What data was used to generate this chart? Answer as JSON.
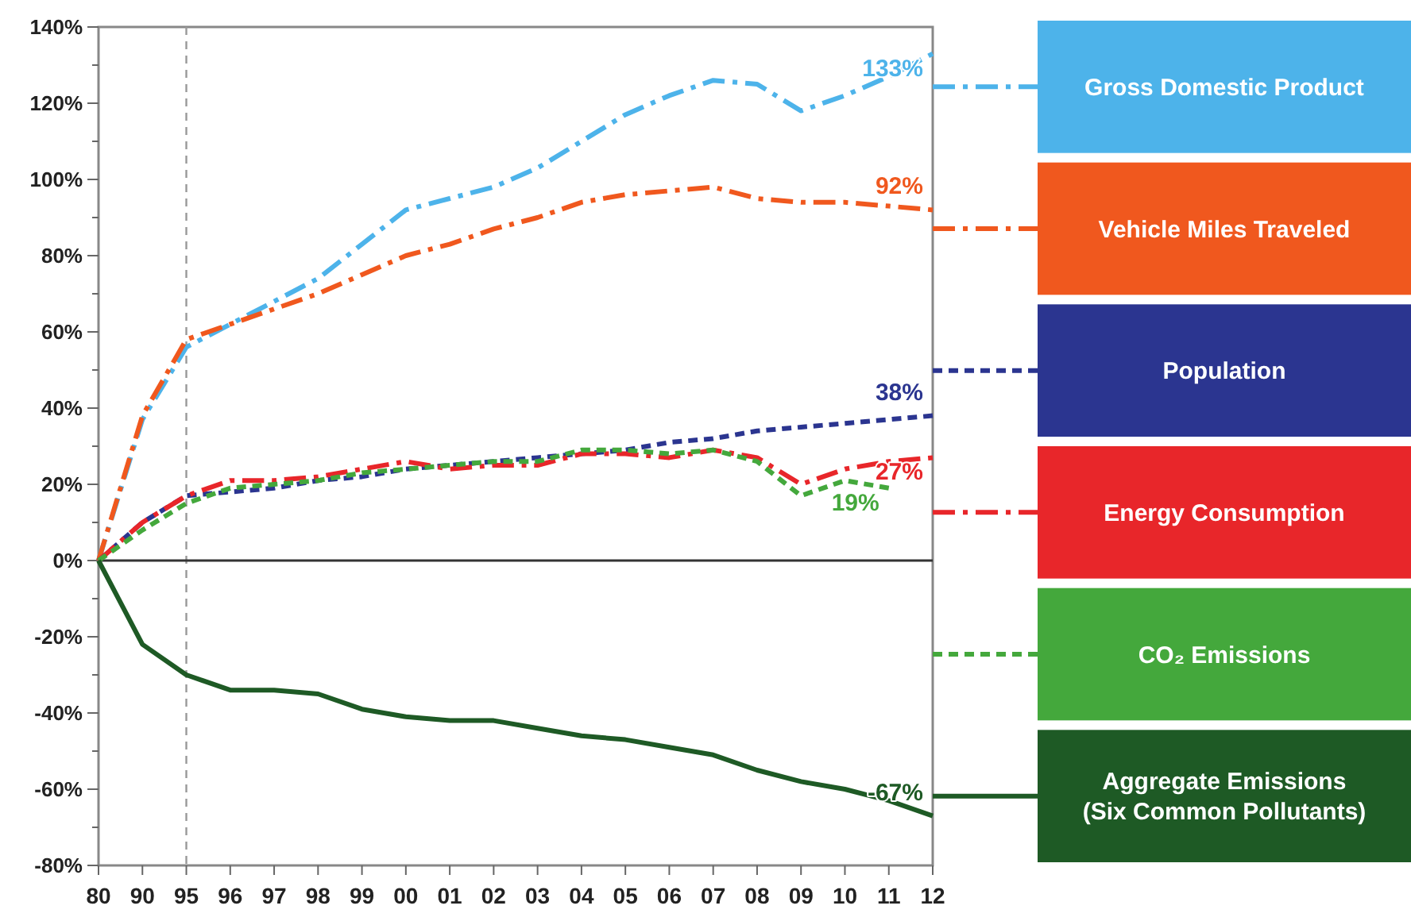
{
  "chart_data": {
    "type": "line",
    "categories": [
      "80",
      "90",
      "95",
      "96",
      "97",
      "98",
      "99",
      "00",
      "01",
      "02",
      "03",
      "04",
      "05",
      "06",
      "07",
      "08",
      "09",
      "10",
      "11",
      "12"
    ],
    "ylim": [
      -80,
      140
    ],
    "yticks": [
      {
        "value": -80,
        "label": "-80%"
      },
      {
        "value": -70,
        "label": null
      },
      {
        "value": -60,
        "label": "-60%"
      },
      {
        "value": -50,
        "label": null
      },
      {
        "value": -40,
        "label": "-40%"
      },
      {
        "value": -30,
        "label": null
      },
      {
        "value": -20,
        "label": "-20%"
      },
      {
        "value": -10,
        "label": null
      },
      {
        "value": 0,
        "label": "0%"
      },
      {
        "value": 10,
        "label": null
      },
      {
        "value": 20,
        "label": "20%"
      },
      {
        "value": 30,
        "label": null
      },
      {
        "value": 40,
        "label": "40%"
      },
      {
        "value": 50,
        "label": null
      },
      {
        "value": 60,
        "label": "60%"
      },
      {
        "value": 70,
        "label": null
      },
      {
        "value": 80,
        "label": "80%"
      },
      {
        "value": 90,
        "label": null
      },
      {
        "value": 100,
        "label": "100%"
      },
      {
        "value": 110,
        "label": null
      },
      {
        "value": 120,
        "label": "120%"
      },
      {
        "value": 130,
        "label": null
      },
      {
        "value": 140,
        "label": "140%"
      }
    ],
    "grid": false,
    "legend": "right",
    "ref_lines": [
      {
        "axis": "x",
        "value": "95",
        "color": "#999999",
        "line_style": "dashed"
      },
      {
        "axis": "y",
        "value": 0,
        "color": "#333333",
        "line_style": "solid"
      }
    ],
    "series": [
      {
        "name": "Gross Domestic Product",
        "color": "#4db3ea",
        "line_style": "dashed",
        "values": [
          0,
          37,
          56,
          62,
          68,
          74,
          83,
          92,
          95,
          98,
          103,
          110,
          117,
          122,
          126,
          125,
          118,
          122,
          127,
          133
        ]
      },
      {
        "name": "Vehicle Miles Traveled",
        "color": "#f0581e",
        "line_style": "dashed",
        "values": [
          0,
          38,
          58,
          62,
          66,
          70,
          75,
          80,
          83,
          87,
          90,
          94,
          96,
          97,
          98,
          95,
          94,
          94,
          93,
          92
        ]
      },
      {
        "name": "Population",
        "color": "#2b3590",
        "line_style": "dotted",
        "values": [
          0,
          10,
          17,
          18,
          19,
          21,
          22,
          24,
          25,
          26,
          27,
          28,
          29,
          31,
          32,
          34,
          35,
          36,
          37,
          38
        ]
      },
      {
        "name": "Energy Consumption",
        "color": "#e8262a",
        "line_style": "dashed",
        "values": [
          0,
          10,
          17,
          21,
          21,
          22,
          24,
          26,
          24,
          25,
          25,
          28,
          28,
          27,
          29,
          27,
          20,
          24,
          26,
          27
        ]
      },
      {
        "name": "CO₂ Emissions",
        "color": "#44a83c",
        "line_style": "dotted",
        "values": [
          0,
          8,
          15,
          19,
          20,
          21,
          23,
          24,
          25,
          26,
          26,
          29,
          29,
          28,
          29,
          26,
          17,
          21,
          19,
          null
        ]
      },
      {
        "name": "Aggregate Emissions (Six Common Pollutants)",
        "color": "#1e5a25",
        "line_style": "solid",
        "values": [
          0,
          -22,
          -30,
          -34,
          -34,
          -35,
          -39,
          -41,
          -42,
          -42,
          -44,
          -46,
          -47,
          -49,
          -51,
          -55,
          -58,
          -60,
          -63,
          -67
        ]
      }
    ],
    "annotations": [
      {
        "text": "133%",
        "x": "12",
        "y": 133
      },
      {
        "text": "92%",
        "x": "12",
        "y": 92
      },
      {
        "text": "38%",
        "x": "12",
        "y": 38
      },
      {
        "text": "27%",
        "x": "12",
        "y": 27
      },
      {
        "text": "19%",
        "x": "11",
        "y": 19
      },
      {
        "text": "-67%",
        "x": "12",
        "y": -67
      }
    ]
  }
}
